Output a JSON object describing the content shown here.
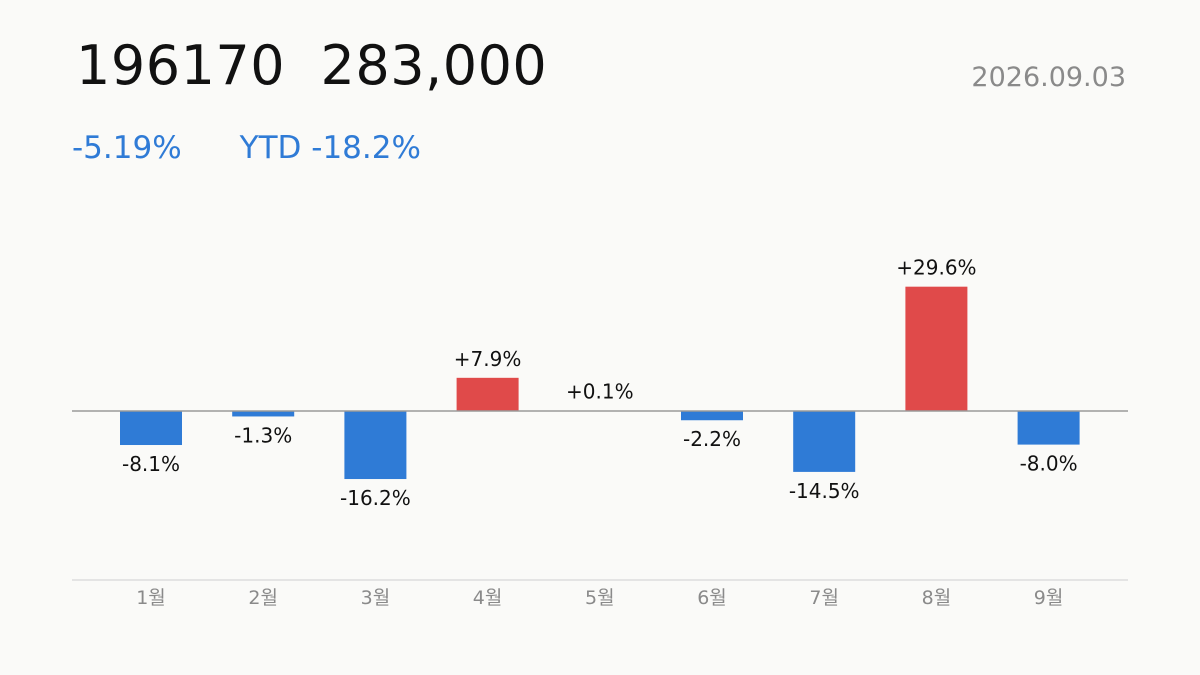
{
  "header": {
    "code": "196170",
    "price": "283,000",
    "date": "2026.09.03",
    "change": "-5.19%",
    "ytd": "YTD -18.2%"
  },
  "colors": {
    "up": "#e04a4a",
    "down": "#2f7bd6",
    "axis": "#999999",
    "axis_base": "#dddddd",
    "tick_text": "#8a8a8a"
  },
  "chart_data": {
    "type": "bar",
    "categories": [
      "1월",
      "2월",
      "3월",
      "4월",
      "5월",
      "6월",
      "7월",
      "8월",
      "9월"
    ],
    "values": [
      -8.1,
      -1.3,
      -16.2,
      7.9,
      0.1,
      -2.2,
      -14.5,
      29.6,
      -8.0
    ],
    "labels": [
      "-8.1%",
      "-1.3%",
      "-16.2%",
      "+7.9%",
      "+0.1%",
      "-2.2%",
      "-14.5%",
      "+29.6%",
      "-8.0%"
    ],
    "grid": false
  }
}
